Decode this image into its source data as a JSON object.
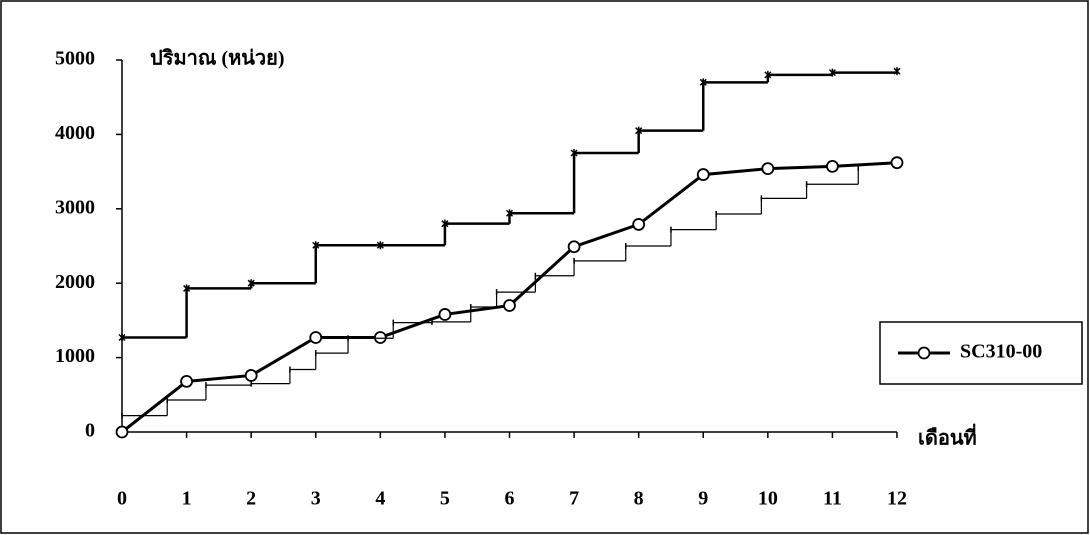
{
  "chart_data": {
    "type": "line",
    "y_label": "ปริมาณ (หน่วย)",
    "x_label": "เดือนที่",
    "x": [
      0,
      1,
      2,
      3,
      4,
      5,
      6,
      7,
      8,
      9,
      10,
      11,
      12
    ],
    "xlim": [
      0,
      12
    ],
    "xticks": [
      0,
      1,
      2,
      3,
      4,
      5,
      6,
      7,
      8,
      9,
      10,
      11,
      12
    ],
    "ylim": [
      0,
      5000
    ],
    "yticks": [
      0,
      1000,
      2000,
      3000,
      4000,
      5000
    ],
    "series": [
      {
        "name": "SC310-00",
        "color": "#000000",
        "marker": "circle",
        "step": false,
        "values": [
          0,
          680,
          760,
          1270,
          1270,
          1580,
          1700,
          2490,
          2790,
          3460,
          3540,
          3570,
          3620
        ]
      },
      {
        "color": "#000000",
        "marker": "cross",
        "step": true,
        "values": [
          1270,
          1930,
          2000,
          2510,
          2510,
          2800,
          2940,
          3750,
          4050,
          4700,
          4800,
          4830,
          4850
        ]
      },
      {
        "color": "#000000",
        "marker": "tick",
        "step": true,
        "x": [
          0,
          0.7,
          1.3,
          2.0,
          2.6,
          3.0,
          3.5,
          4.2,
          4.8,
          5.4,
          5.8,
          6.4,
          7.0,
          7.8,
          8.5,
          9.2,
          9.9,
          10.6,
          11.4
        ],
        "values": [
          220,
          430,
          630,
          650,
          840,
          1060,
          1260,
          1470,
          1480,
          1680,
          1880,
          2100,
          2300,
          2500,
          2720,
          2930,
          3140,
          3330,
          3550
        ]
      }
    ],
    "legend": "right"
  }
}
